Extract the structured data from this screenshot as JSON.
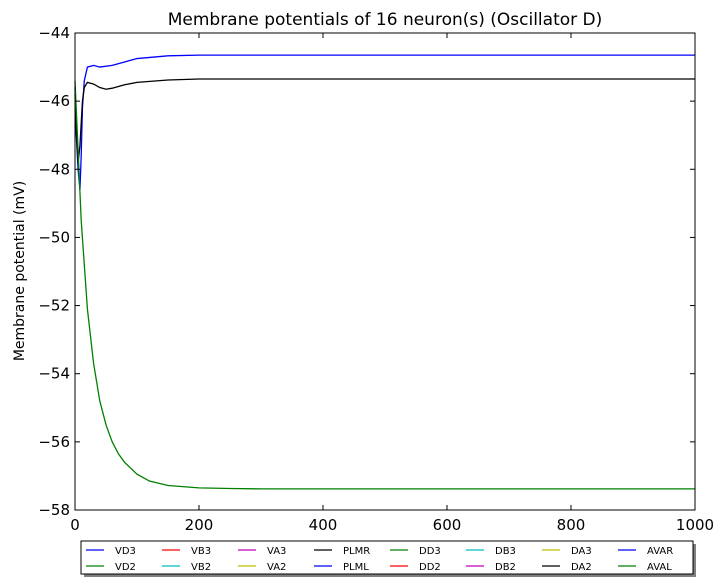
{
  "chart_data": {
    "type": "line",
    "title": "Membrane potentials of 16 neuron(s) (Oscillator D)",
    "xlabel": "",
    "ylabel": "Membrane potential (mV)",
    "xlim": [
      0,
      1000
    ],
    "ylim": [
      -58,
      -44
    ],
    "xticks": [
      "0",
      "200",
      "400",
      "600",
      "800",
      "1000"
    ],
    "yticks": [
      "−44",
      "−46",
      "−48",
      "−50",
      "−52",
      "−54",
      "−56",
      "−58"
    ],
    "grid": false,
    "legend_position": "bottom",
    "legend": [
      {
        "name": "VD3",
        "color": "#0000ff"
      },
      {
        "name": "VD2",
        "color": "#008000"
      },
      {
        "name": "VB3",
        "color": "#ff0000"
      },
      {
        "name": "VB2",
        "color": "#00bfbf"
      },
      {
        "name": "VA3",
        "color": "#bf00bf"
      },
      {
        "name": "VA2",
        "color": "#bfbf00"
      },
      {
        "name": "PLMR",
        "color": "#000000"
      },
      {
        "name": "PLML",
        "color": "#0000ff"
      },
      {
        "name": "DD3",
        "color": "#008000"
      },
      {
        "name": "DD2",
        "color": "#ff0000"
      },
      {
        "name": "DB3",
        "color": "#00bfbf"
      },
      {
        "name": "DB2",
        "color": "#bf00bf"
      },
      {
        "name": "DA3",
        "color": "#bfbf00"
      },
      {
        "name": "DA2",
        "color": "#000000"
      },
      {
        "name": "AVAR",
        "color": "#0000ff"
      },
      {
        "name": "AVAL",
        "color": "#008000"
      }
    ],
    "series": [
      {
        "name": "PLML",
        "color": "#0000ff",
        "x": [
          0,
          2,
          5,
          8,
          10,
          12,
          15,
          20,
          30,
          40,
          60,
          100,
          150,
          200,
          300,
          1000
        ],
        "y": [
          -45.8,
          -47.0,
          -48.0,
          -48.6,
          -47.6,
          -46.2,
          -45.4,
          -45.0,
          -44.95,
          -45.0,
          -44.95,
          -44.75,
          -44.67,
          -44.65,
          -44.65,
          -44.65
        ]
      },
      {
        "name": "PLMR",
        "color": "#000000",
        "x": [
          0,
          2,
          5,
          8,
          12,
          15,
          20,
          30,
          40,
          50,
          60,
          80,
          100,
          150,
          200,
          300,
          1000
        ],
        "y": [
          -45.6,
          -46.8,
          -47.8,
          -47.3,
          -46.0,
          -45.6,
          -45.45,
          -45.5,
          -45.6,
          -45.65,
          -45.62,
          -45.52,
          -45.45,
          -45.38,
          -45.35,
          -45.35,
          -45.35
        ]
      },
      {
        "name": "AVAL",
        "color": "#008000",
        "x": [
          0,
          10,
          20,
          30,
          40,
          50,
          60,
          70,
          80,
          100,
          120,
          150,
          200,
          250,
          300,
          1000
        ],
        "y": [
          -45.4,
          -49.5,
          -52.1,
          -53.7,
          -54.8,
          -55.5,
          -56.0,
          -56.35,
          -56.6,
          -56.95,
          -57.15,
          -57.28,
          -57.35,
          -57.37,
          -57.38,
          -57.38
        ]
      }
    ]
  }
}
